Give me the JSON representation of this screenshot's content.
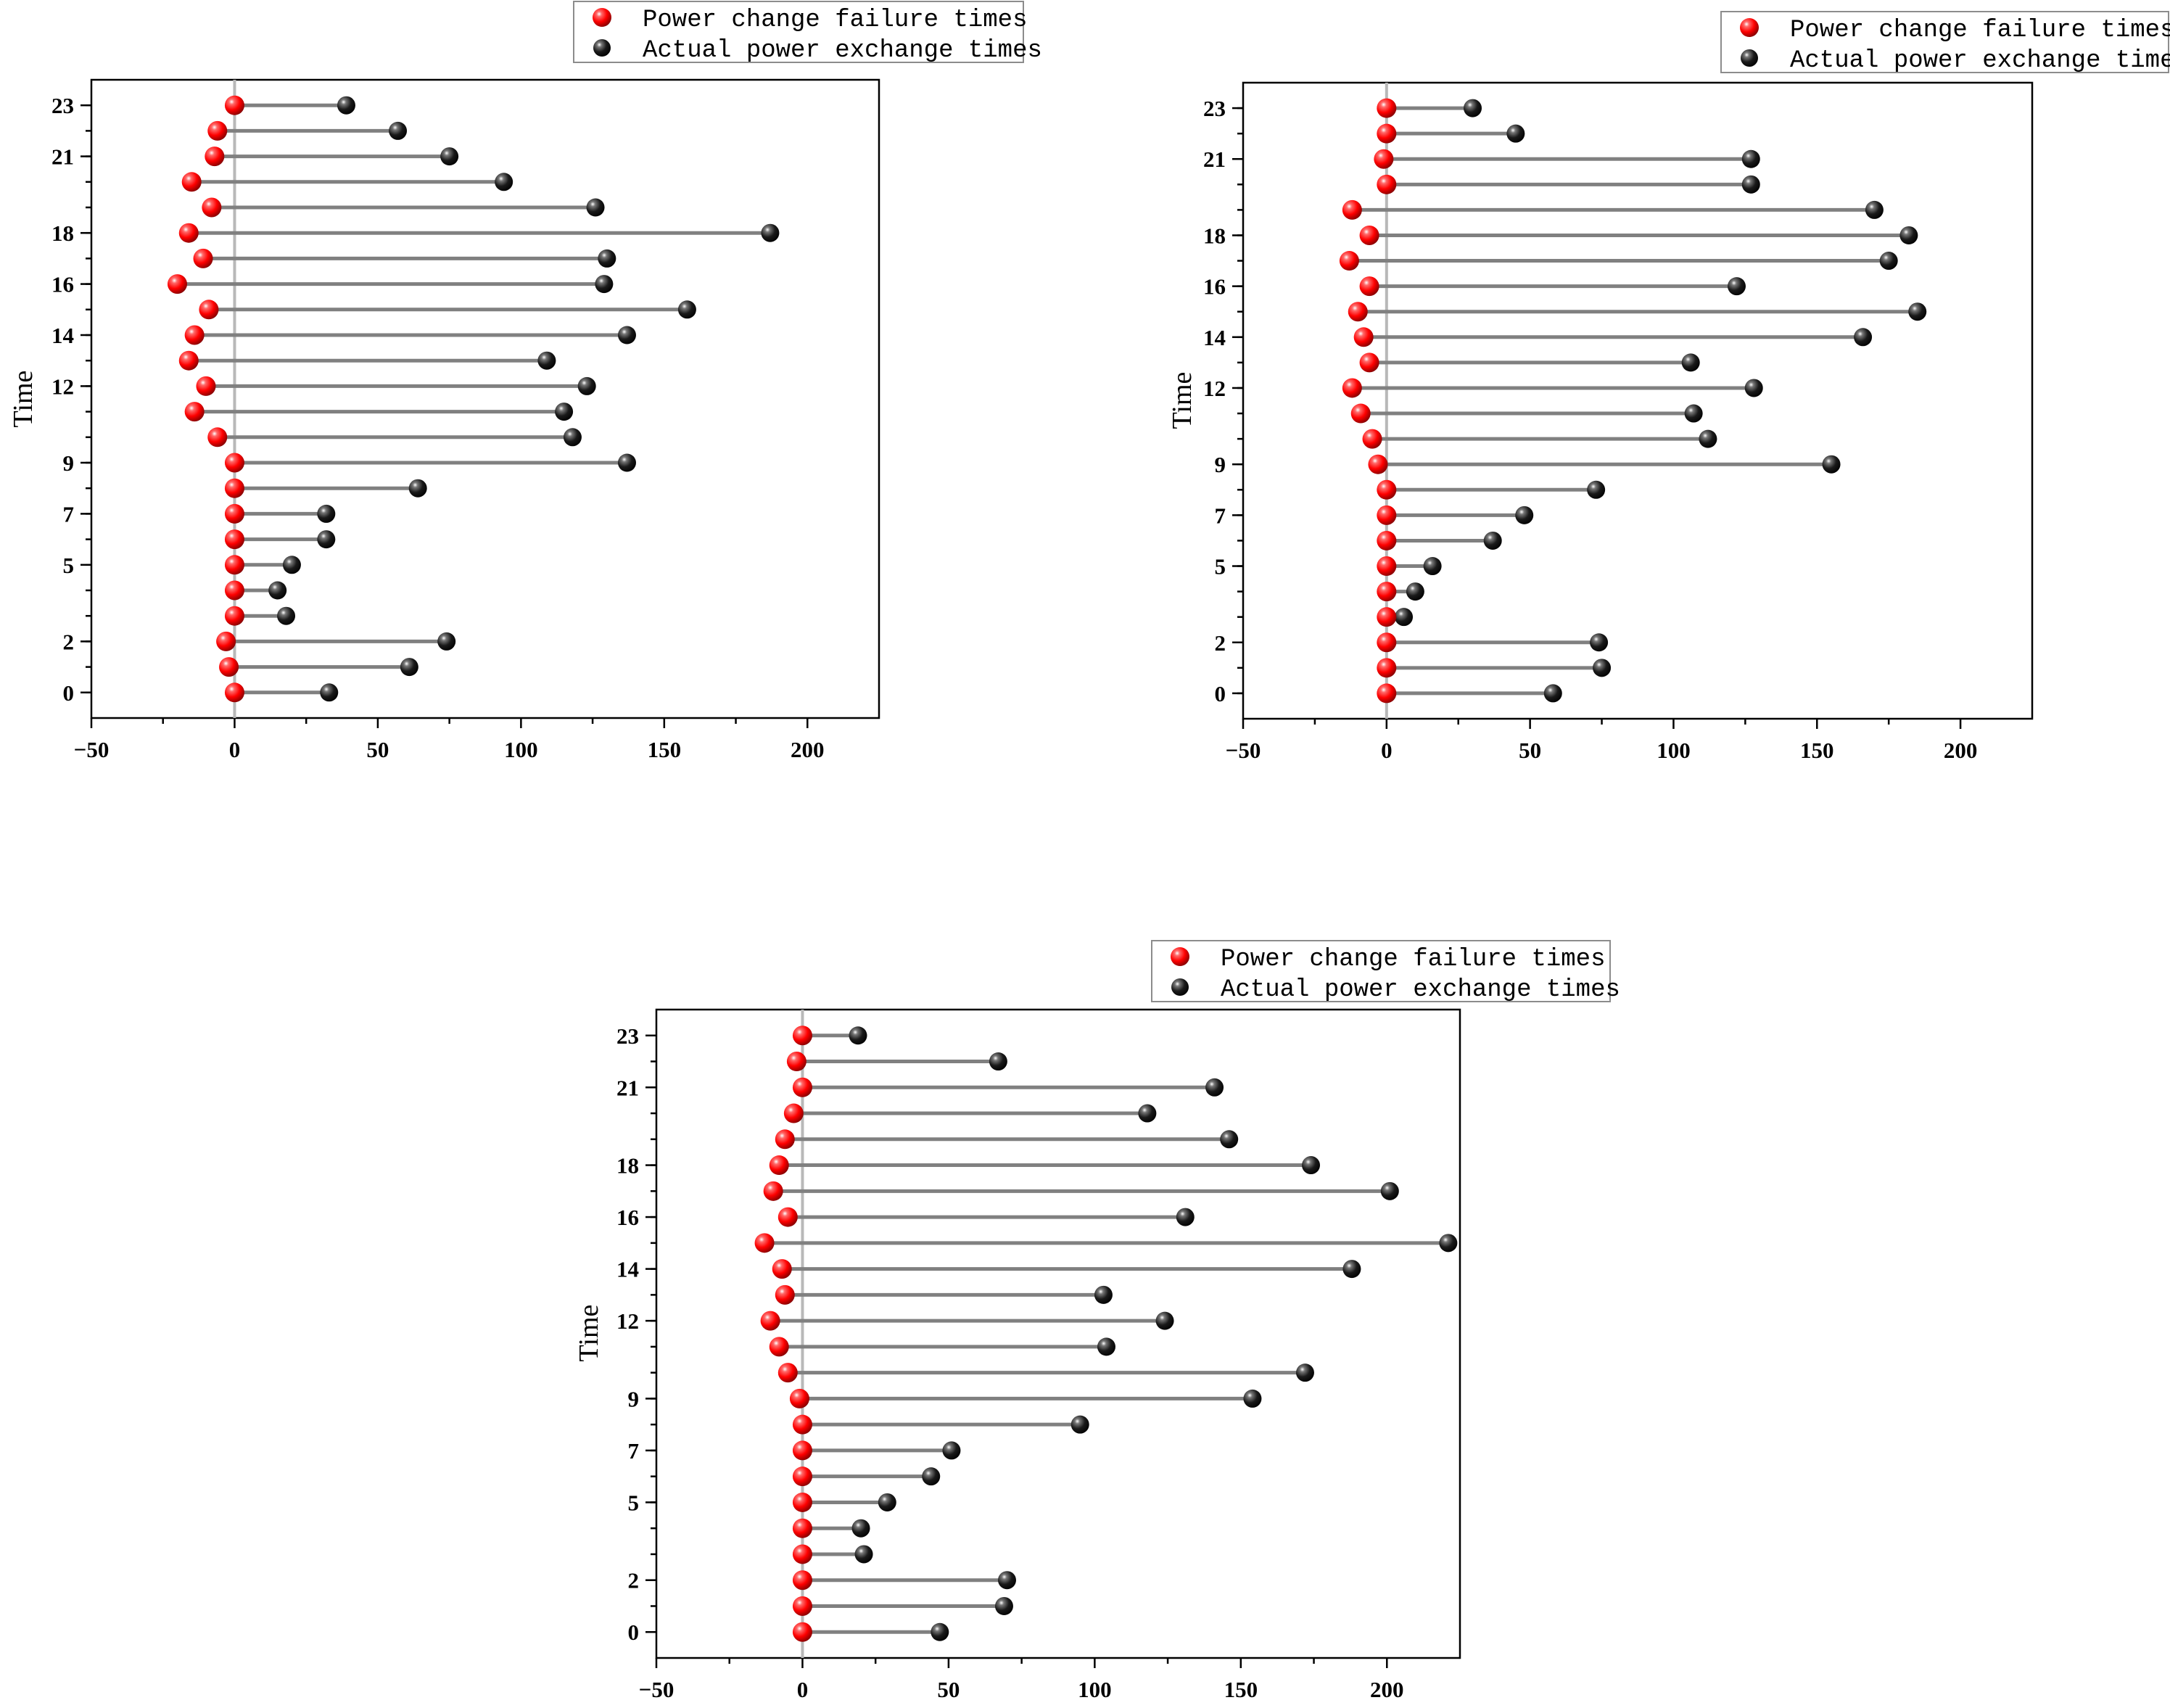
{
  "chart_data": [
    {
      "type": "scatter",
      "ylabel": "Time",
      "xlim": [
        -50,
        225
      ],
      "ylim": [
        -1,
        24
      ],
      "xticks": [
        -50,
        0,
        50,
        100,
        150,
        200
      ],
      "ytick_labels": [
        "0",
        "2",
        "5",
        "7",
        "9",
        "12",
        "14",
        "16",
        "18",
        "21",
        "23"
      ],
      "legend_position": "top-right-above",
      "series": [
        {
          "name": "Power change failure times",
          "color": "#ff0000",
          "x": [
            0,
            -2,
            -3,
            0,
            0,
            0,
            0,
            0,
            0,
            0,
            -6,
            -14,
            -10,
            -16,
            -14,
            -9,
            -20,
            -11,
            -16,
            -8,
            -15,
            -7,
            -6,
            0
          ]
        },
        {
          "name": "Actual power exchange times",
          "color": "#000000",
          "x": [
            33,
            61,
            74,
            18,
            15,
            20,
            32,
            32,
            64,
            137,
            118,
            115,
            123,
            109,
            137,
            158,
            129,
            130,
            187,
            126,
            94,
            75,
            57,
            39
          ]
        }
      ],
      "y": [
        0,
        1,
        2,
        3,
        4,
        5,
        6,
        7,
        8,
        9,
        10,
        11,
        12,
        13,
        14,
        15,
        16,
        17,
        18,
        19,
        20,
        21,
        22,
        23
      ]
    },
    {
      "type": "scatter",
      "ylabel": "Time",
      "xlim": [
        -50,
        225
      ],
      "ylim": [
        -1,
        24
      ],
      "xticks": [
        -50,
        0,
        50,
        100,
        150,
        200
      ],
      "ytick_labels": [
        "0",
        "2",
        "5",
        "7",
        "9",
        "12",
        "14",
        "16",
        "18",
        "21",
        "23"
      ],
      "legend_position": "top-right-above",
      "series": [
        {
          "name": "Power change failure times",
          "color": "#ff0000",
          "x": [
            0,
            0,
            0,
            0,
            0,
            0,
            0,
            0,
            0,
            -3,
            -5,
            -9,
            -12,
            -6,
            -8,
            -10,
            -6,
            -13,
            -6,
            -12,
            0,
            -1,
            0,
            0
          ]
        },
        {
          "name": "Actual power exchange times",
          "color": "#000000",
          "x": [
            58,
            75,
            74,
            6,
            10,
            16,
            37,
            48,
            73,
            155,
            112,
            107,
            128,
            106,
            166,
            185,
            122,
            175,
            182,
            170,
            127,
            127,
            45,
            30
          ]
        }
      ],
      "y": [
        0,
        1,
        2,
        3,
        4,
        5,
        6,
        7,
        8,
        9,
        10,
        11,
        12,
        13,
        14,
        15,
        16,
        17,
        18,
        19,
        20,
        21,
        22,
        23
      ]
    },
    {
      "type": "scatter",
      "ylabel": "Time",
      "xlim": [
        -50,
        225
      ],
      "ylim": [
        -1,
        24
      ],
      "xticks": [
        -50,
        0,
        50,
        100,
        150,
        200
      ],
      "ytick_labels": [
        "0",
        "2",
        "5",
        "7",
        "9",
        "12",
        "14",
        "16",
        "18",
        "21",
        "23"
      ],
      "legend_position": "top-right-above",
      "series": [
        {
          "name": "Power change failure times",
          "color": "#ff0000",
          "x": [
            0,
            0,
            0,
            0,
            0,
            0,
            0,
            0,
            0,
            -1,
            -5,
            -8,
            -11,
            -6,
            -7,
            -13,
            -5,
            -10,
            -8,
            -6,
            -3,
            0,
            -2,
            0
          ]
        },
        {
          "name": "Actual power exchange times",
          "color": "#000000",
          "x": [
            47,
            69,
            70,
            21,
            20,
            29,
            44,
            51,
            95,
            154,
            172,
            104,
            124,
            103,
            188,
            221,
            131,
            201,
            174,
            146,
            118,
            141,
            67,
            19
          ]
        }
      ],
      "y": [
        0,
        1,
        2,
        3,
        4,
        5,
        6,
        7,
        8,
        9,
        10,
        11,
        12,
        13,
        14,
        15,
        16,
        17,
        18,
        19,
        20,
        21,
        22,
        23
      ]
    }
  ]
}
